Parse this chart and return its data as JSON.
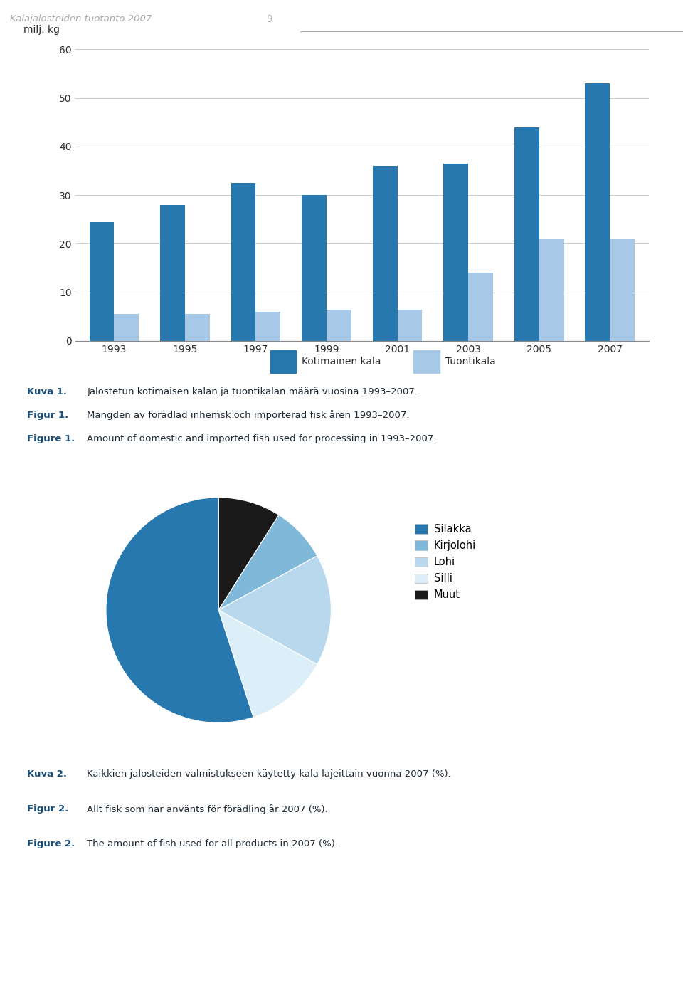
{
  "page_header": "Kalajalosteiden tuotanto 2007",
  "page_number": "9",
  "bar_ylabel": "milj. kg",
  "bar_yticks": [
    0,
    10,
    20,
    30,
    40,
    50,
    60
  ],
  "bar_ylim": [
    0,
    60
  ],
  "bar_years": [
    1993,
    1995,
    1997,
    1999,
    2001,
    2003,
    2005,
    2007
  ],
  "domestic": [
    24.5,
    28.0,
    32.5,
    30.0,
    36.0,
    36.5,
    44.0,
    53.0
  ],
  "imported": [
    5.5,
    5.5,
    6.0,
    6.5,
    6.5,
    14.0,
    21.0,
    21.0
  ],
  "bar_color_domestic": "#2878b0",
  "bar_color_imported": "#a8c8e8",
  "legend_domestic": "Kotimainen kala",
  "legend_imported": "Tuontikala",
  "bar_width": 0.35,
  "pie_values": [
    55,
    8,
    16,
    12,
    9
  ],
  "pie_labels": [
    "Silakka",
    "Kirjolohi",
    "Lohi",
    "Silli",
    "Muut"
  ],
  "pie_colors": [
    "#2878b0",
    "#7fb8d8",
    "#b8d8ee",
    "#dceef8",
    "#1a1a1a"
  ],
  "pie_startangle": 90,
  "caption1_bold": "Kuva 1.",
  "caption1_fi": "Jalostetun kotimaisen kalan ja tuontikalan määrä vuosina 1993–2007.",
  "caption1_sv_bold": "Figur 1.",
  "caption1_sv": "Mängden av förädlad inhemsk och importerad fisk åren 1993–2007.",
  "caption1_en_bold": "Figure 1.",
  "caption1_en": "Amount of domestic and imported fish used for processing in 1993–2007.",
  "caption2_bold": "Kuva 2.",
  "caption2_fi": "Kaikkien jalosteiden valmistukseen käytetty kala lajeittain vuonna 2007 (%).",
  "caption2_sv_bold": "Figur 2.",
  "caption2_sv": "Allt fisk som har använts för förädling år 2007 (%).",
  "caption2_en_bold": "Figure 2.",
  "caption2_en": "The amount of fish used for all products in 2007 (%).",
  "background_color": "#ffffff",
  "text_color": "#2c2c2c",
  "header_color": "#aaaaaa",
  "caption_color_bold": "#1a4f7a",
  "caption_color_normal": "#1c2833",
  "grid_color": "#cccccc",
  "axis_color": "#888888"
}
